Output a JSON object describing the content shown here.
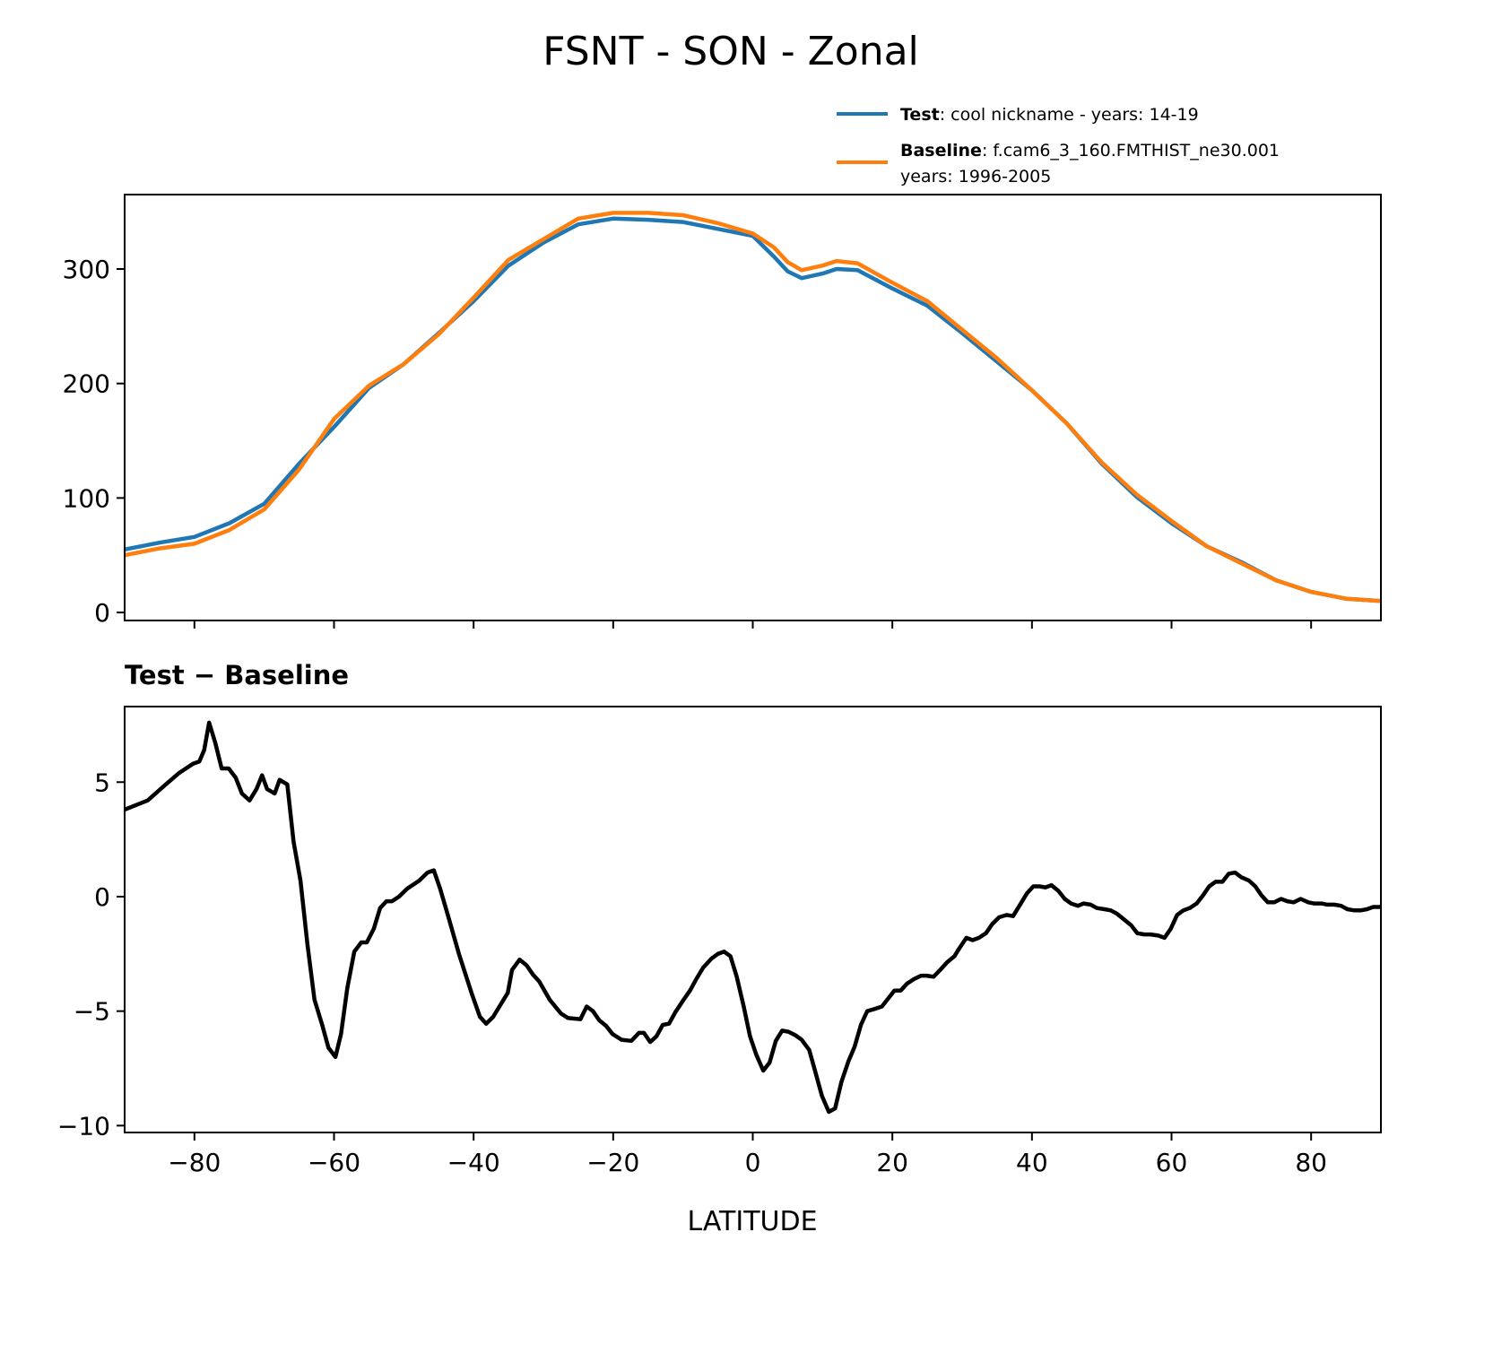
{
  "chart_data": [
    {
      "type": "line",
      "title": "FSNT - SON - Zonal",
      "xlabel": "",
      "ylabel": "",
      "xlim": [
        -90,
        90
      ],
      "ylim": [
        -7,
        365
      ],
      "yticks": [
        0,
        100,
        200,
        300
      ],
      "xticks": [
        -80,
        -60,
        -40,
        -20,
        0,
        20,
        40,
        60,
        80
      ],
      "legend": {
        "placement": "top-right, above axes",
        "entries": [
          {
            "bold": "Test",
            "text": ": cool nickname - years: 14-19",
            "color": "#1f77b4"
          },
          {
            "bold": "Baseline",
            "text": ": f.cam6_3_160.FMTHIST_ne30.001",
            "text2": "years: 1996-2005",
            "color": "#ff7f0e"
          }
        ]
      },
      "x": [
        -90,
        -85,
        -80,
        -75,
        -70,
        -65,
        -60,
        -55,
        -50,
        -45,
        -40,
        -35,
        -30,
        -25,
        -20,
        -15,
        -10,
        -5,
        0,
        3,
        5,
        7,
        10,
        12,
        15,
        20,
        25,
        30,
        35,
        40,
        45,
        50,
        55,
        60,
        65,
        70,
        75,
        80,
        85,
        90
      ],
      "series": [
        {
          "name": "Test",
          "color": "#1f77b4",
          "values": [
            55,
            61,
            66,
            78,
            95,
            130,
            162,
            196,
            217,
            244,
            272,
            303,
            323,
            339,
            344,
            343,
            341,
            335,
            329,
            311,
            298,
            292,
            296,
            300,
            299,
            283,
            268,
            244,
            219,
            194,
            165,
            130,
            101,
            78,
            58,
            44,
            28,
            18,
            12,
            10
          ]
        },
        {
          "name": "Baseline",
          "color": "#ff7f0e",
          "values": [
            50,
            56,
            60,
            72,
            90,
            125,
            169,
            198,
            217,
            243,
            275,
            308,
            326,
            344,
            349,
            349,
            347,
            340,
            331,
            319,
            306,
            299,
            303,
            307,
            305,
            288,
            272,
            247,
            222,
            194,
            165,
            131,
            103,
            80,
            58,
            43,
            28,
            18,
            12,
            10
          ]
        }
      ]
    },
    {
      "type": "line",
      "title": "Test − Baseline",
      "xlabel": "LATITUDE",
      "ylabel": "",
      "xlim": [
        -90,
        90
      ],
      "ylim": [
        -10.3,
        8.3
      ],
      "yticks": [
        -10,
        -5,
        0,
        5
      ],
      "ytick_labels": [
        "−10",
        "−5",
        "0",
        "5"
      ],
      "xticks": [
        -80,
        -60,
        -40,
        -20,
        0,
        20,
        40,
        60,
        80
      ],
      "xtick_labels": [
        "−80",
        "−60",
        "−40",
        "−20",
        "0",
        "20",
        "40",
        "60",
        "80"
      ],
      "series": [
        {
          "name": "Test - Baseline",
          "color": "#000000",
          "x": [
            -90,
            -86.7,
            -84.1,
            -82.2,
            -80.2,
            -79.3,
            -78.6,
            -77.9,
            -77.0,
            -76.1,
            -75.1,
            -74.1,
            -73.2,
            -72.1,
            -71.1,
            -70.3,
            -69.6,
            -68.5,
            -67.8,
            -66.7,
            -65.8,
            -64.8,
            -63.8,
            -62.8,
            -61.7,
            -60.8,
            -59.8,
            -59.0,
            -58.1,
            -57.1,
            -56.1,
            -55.3,
            -54.3,
            -53.4,
            -52.5,
            -51.7,
            -50.7,
            -49.5,
            -47.8,
            -46.6,
            -45.7,
            -44.8,
            -43.7,
            -42.1,
            -40.3,
            -39.1,
            -38.2,
            -37.2,
            -36.1,
            -35.1,
            -34.5,
            -33.4,
            -32.4,
            -31.5,
            -30.6,
            -29.1,
            -27.5,
            -26.5,
            -24.7,
            -23.8,
            -22.9,
            -22.0,
            -21.0,
            -20.1,
            -18.8,
            -17.4,
            -16.3,
            -15.6,
            -14.7,
            -13.8,
            -12.9,
            -12.0,
            -11.1,
            -9.9,
            -9.0,
            -8.1,
            -7.1,
            -5.9,
            -5.0,
            -4.1,
            -3.2,
            -2.3,
            -1.3,
            -0.4,
            0.5,
            1.5,
            2.4,
            3.3,
            4.2,
            5.1,
            6.1,
            7.0,
            8.1,
            9.0,
            9.9,
            10.9,
            11.8,
            12.7,
            13.7,
            14.6,
            15.5,
            16.4,
            17.5,
            18.5,
            19.4,
            20.3,
            21.2,
            22.1,
            23.1,
            24.1,
            24.9,
            25.9,
            27.0,
            27.9,
            28.9,
            29.5,
            30.6,
            31.5,
            32.4,
            33.4,
            34.3,
            35.3,
            36.4,
            37.3,
            38.3,
            39.3,
            40.2,
            41.1,
            41.9,
            42.8,
            43.8,
            44.7,
            45.6,
            46.6,
            47.4,
            48.4,
            49.3,
            50.4,
            51.3,
            52.2,
            53.2,
            54.2,
            55.1,
            56.1,
            57.0,
            58.1,
            59.0,
            59.9,
            60.8,
            61.7,
            62.6,
            63.6,
            64.5,
            65.4,
            66.3,
            67.3,
            68.2,
            69.1,
            70.0,
            71.1,
            72.0,
            72.9,
            73.8,
            74.7,
            75.7,
            76.6,
            77.5,
            78.5,
            79.6,
            80.4,
            81.5,
            82.3,
            83.3,
            84.3,
            85.2,
            86.2,
            87.1,
            88.0,
            88.9,
            90
          ],
          "values": [
            3.8,
            4.2,
            4.9,
            5.4,
            5.8,
            5.9,
            6.4,
            7.6,
            6.7,
            5.6,
            5.6,
            5.2,
            4.5,
            4.2,
            4.7,
            5.3,
            4.7,
            4.5,
            5.1,
            4.9,
            2.4,
            0.7,
            -2.1,
            -4.5,
            -5.6,
            -6.6,
            -7.0,
            -6.0,
            -4.0,
            -2.4,
            -2.0,
            -2.0,
            -1.4,
            -0.5,
            -0.2,
            -0.2,
            0.0,
            0.35,
            0.7,
            1.05,
            1.15,
            0.35,
            -0.8,
            -2.5,
            -4.2,
            -5.25,
            -5.55,
            -5.25,
            -4.7,
            -4.2,
            -3.2,
            -2.75,
            -3.0,
            -3.4,
            -3.7,
            -4.5,
            -5.1,
            -5.3,
            -5.35,
            -4.8,
            -5.0,
            -5.4,
            -5.65,
            -6.0,
            -6.25,
            -6.3,
            -5.95,
            -5.95,
            -6.35,
            -6.1,
            -5.6,
            -5.55,
            -5.05,
            -4.5,
            -4.1,
            -3.6,
            -3.1,
            -2.7,
            -2.5,
            -2.4,
            -2.6,
            -3.5,
            -4.8,
            -6.1,
            -6.9,
            -7.6,
            -7.25,
            -6.3,
            -5.85,
            -5.9,
            -6.05,
            -6.25,
            -6.7,
            -7.7,
            -8.7,
            -9.4,
            -9.25,
            -8.1,
            -7.2,
            -6.55,
            -5.6,
            -5.0,
            -4.9,
            -4.8,
            -4.45,
            -4.1,
            -4.1,
            -3.8,
            -3.6,
            -3.45,
            -3.45,
            -3.5,
            -3.15,
            -2.85,
            -2.6,
            -2.3,
            -1.8,
            -1.9,
            -1.8,
            -1.6,
            -1.2,
            -0.9,
            -0.8,
            -0.85,
            -0.35,
            0.15,
            0.45,
            0.45,
            0.4,
            0.5,
            0.25,
            -0.1,
            -0.3,
            -0.4,
            -0.3,
            -0.35,
            -0.5,
            -0.55,
            -0.6,
            -0.75,
            -1.0,
            -1.25,
            -1.6,
            -1.65,
            -1.65,
            -1.7,
            -1.8,
            -1.4,
            -0.8,
            -0.6,
            -0.5,
            -0.3,
            0.05,
            0.45,
            0.65,
            0.65,
            1.0,
            1.05,
            0.85,
            0.7,
            0.45,
            0.05,
            -0.25,
            -0.25,
            -0.1,
            -0.2,
            -0.25,
            -0.1,
            -0.25,
            -0.3,
            -0.3,
            -0.35,
            -0.35,
            -0.4,
            -0.55,
            -0.6,
            -0.6,
            -0.55,
            -0.45,
            -0.45
          ]
        }
      ]
    }
  ]
}
